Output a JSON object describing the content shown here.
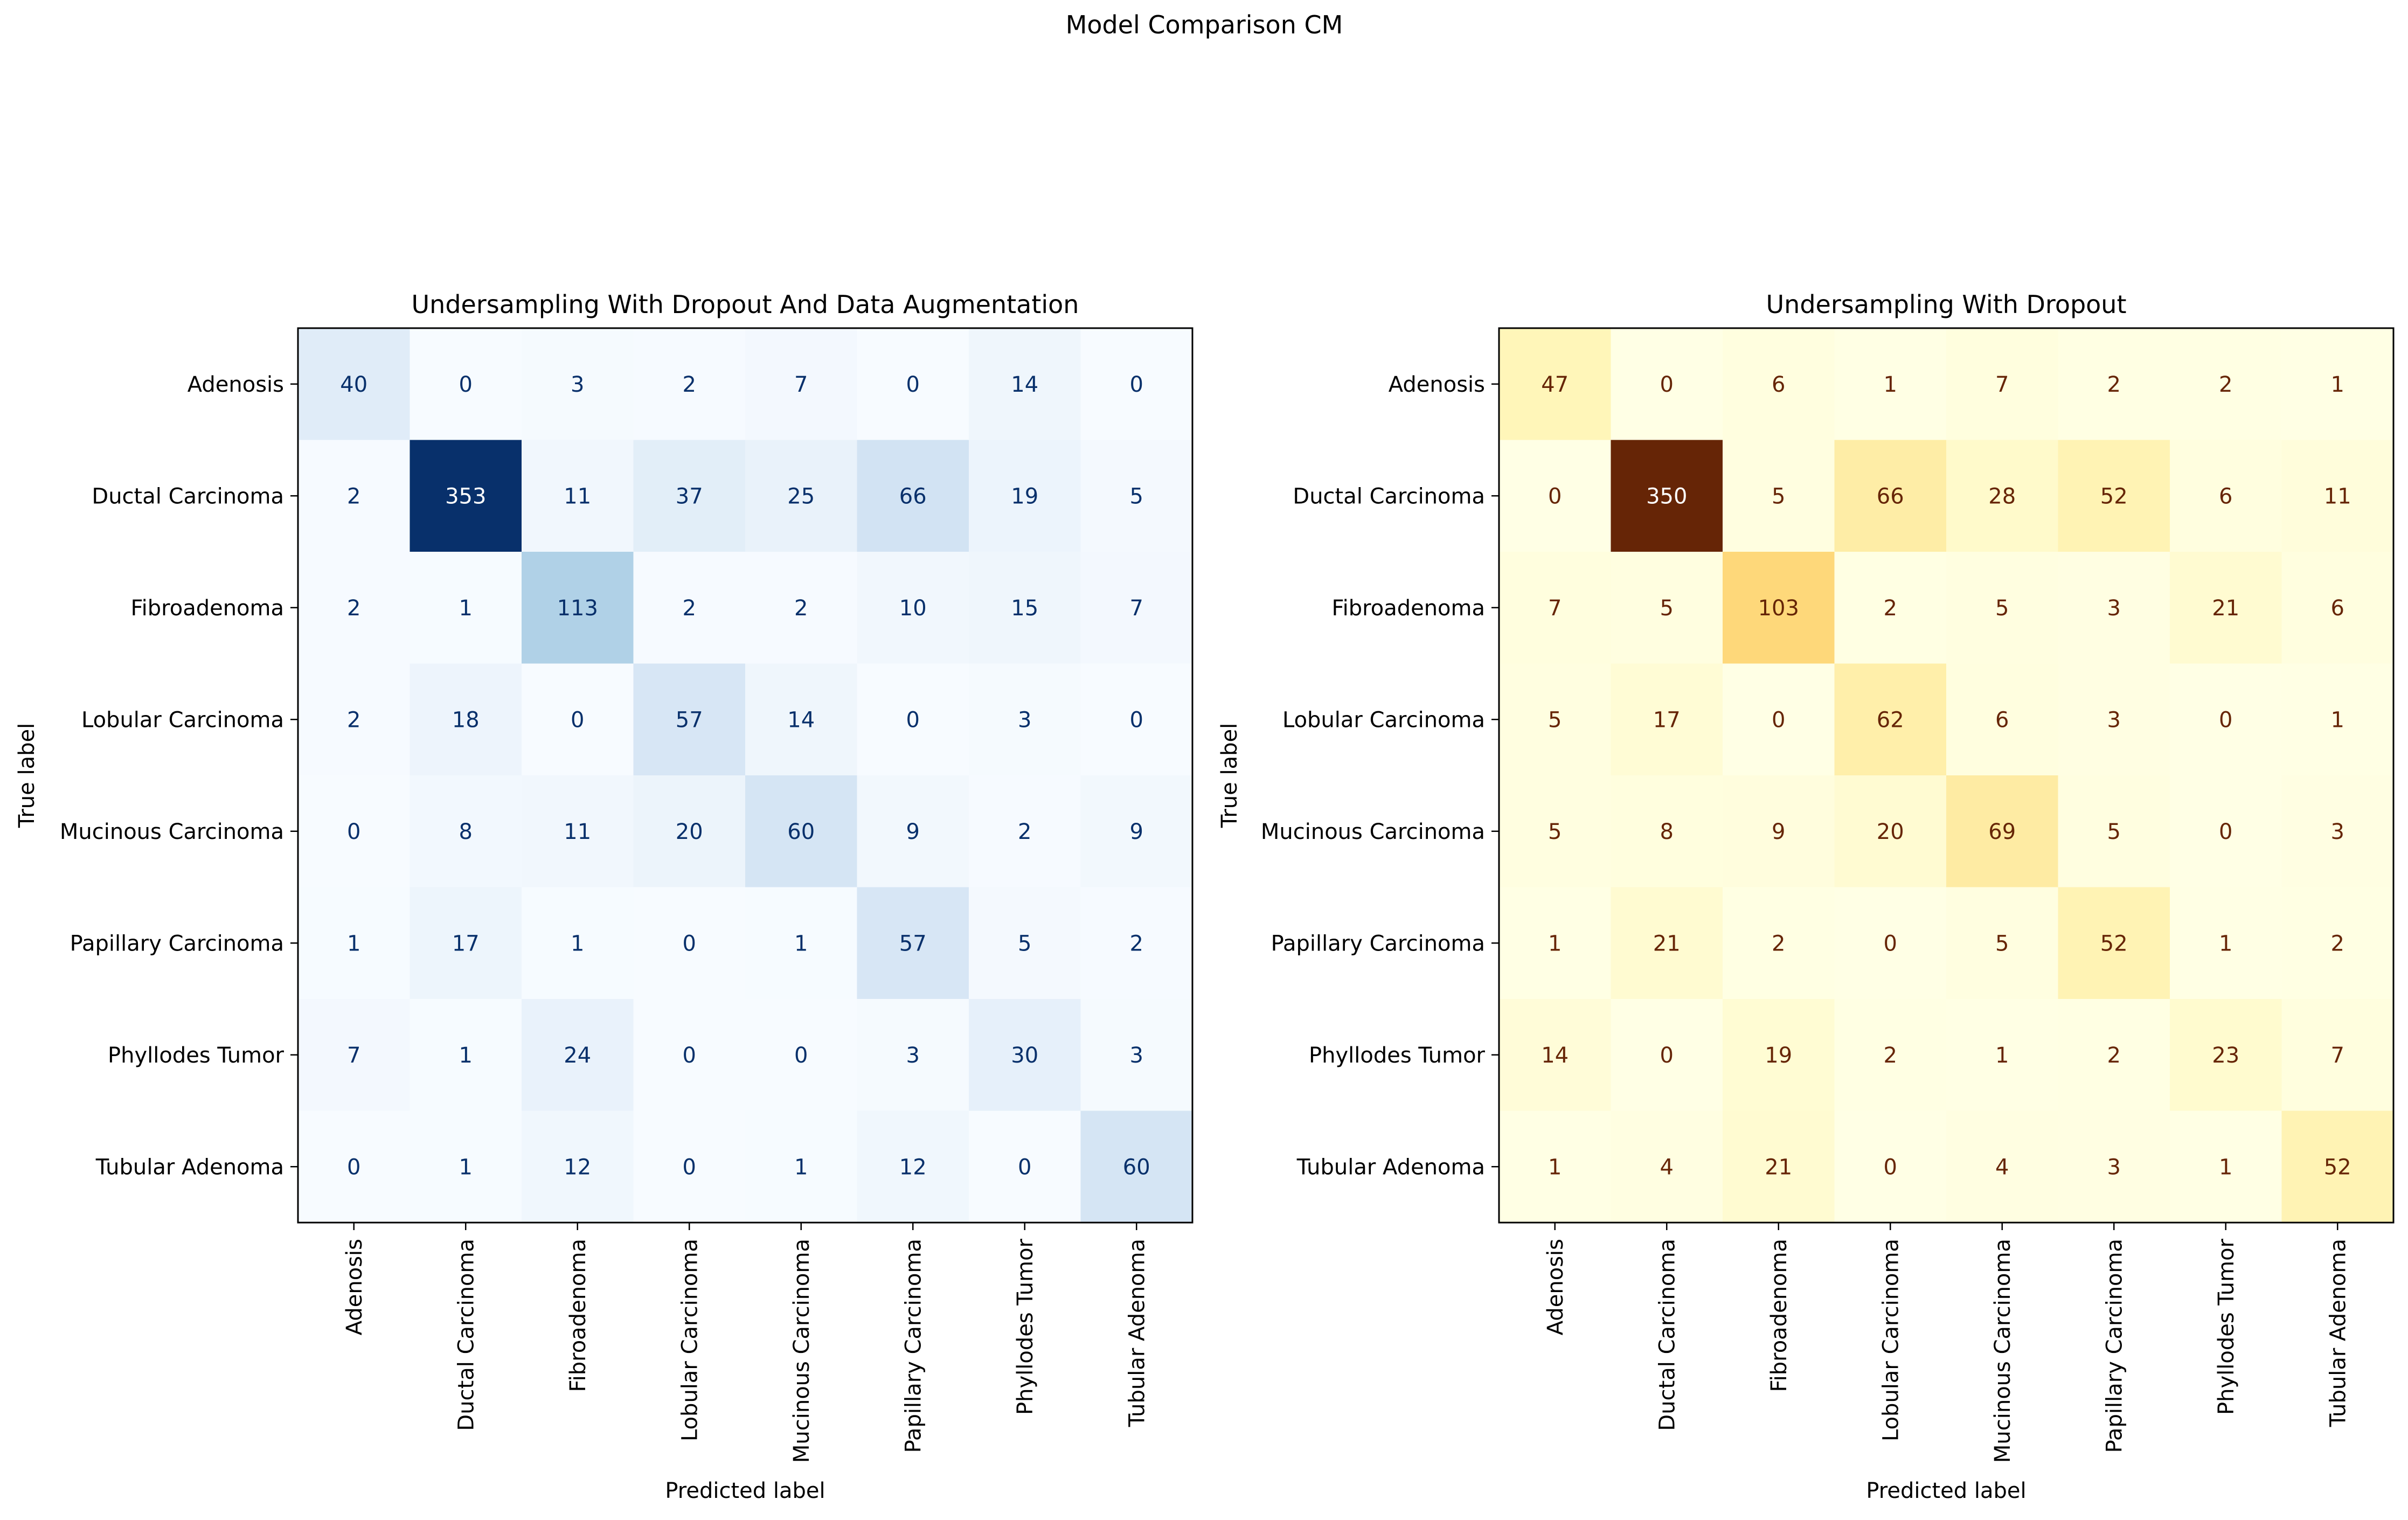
{
  "figure": {
    "suptitle": "Model Comparison CM"
  },
  "chart_data": [
    {
      "type": "heatmap",
      "title": "Undersampling With Dropout And Data Augmentation",
      "xlabel": "Predicted label",
      "ylabel": "True label",
      "colormap": "Blues",
      "color_low": "#f7fbff",
      "color_high": "#08306b",
      "value_range": [
        0,
        353
      ],
      "categories": [
        "Adenosis",
        "Ductal Carcinoma",
        "Fibroadenoma",
        "Lobular Carcinoma",
        "Mucinous Carcinoma",
        "Papillary Carcinoma",
        "Phyllodes Tumor",
        "Tubular Adenoma"
      ],
      "matrix": [
        [
          40,
          0,
          3,
          2,
          7,
          0,
          14,
          0
        ],
        [
          2,
          353,
          11,
          37,
          25,
          66,
          19,
          5
        ],
        [
          2,
          1,
          113,
          2,
          2,
          10,
          15,
          7
        ],
        [
          2,
          18,
          0,
          57,
          14,
          0,
          3,
          0
        ],
        [
          0,
          8,
          11,
          20,
          60,
          9,
          2,
          9
        ],
        [
          1,
          17,
          1,
          0,
          1,
          57,
          5,
          2
        ],
        [
          7,
          1,
          24,
          0,
          0,
          3,
          30,
          3
        ],
        [
          0,
          1,
          12,
          0,
          1,
          12,
          0,
          60
        ]
      ]
    },
    {
      "type": "heatmap",
      "title": "Undersampling With Dropout",
      "xlabel": "Predicted label",
      "ylabel": "True label",
      "colormap": "YlOrBr",
      "color_low": "#ffffe5",
      "color_high": "#662506",
      "value_range": [
        0,
        350
      ],
      "categories": [
        "Adenosis",
        "Ductal Carcinoma",
        "Fibroadenoma",
        "Lobular Carcinoma",
        "Mucinous Carcinoma",
        "Papillary Carcinoma",
        "Phyllodes Tumor",
        "Tubular Adenoma"
      ],
      "matrix": [
        [
          47,
          0,
          6,
          1,
          7,
          2,
          2,
          1
        ],
        [
          0,
          350,
          5,
          66,
          28,
          52,
          6,
          11
        ],
        [
          7,
          5,
          103,
          2,
          5,
          3,
          21,
          6
        ],
        [
          5,
          17,
          0,
          62,
          6,
          3,
          0,
          1
        ],
        [
          5,
          8,
          9,
          20,
          69,
          5,
          0,
          3
        ],
        [
          1,
          21,
          2,
          0,
          5,
          52,
          1,
          2
        ],
        [
          14,
          0,
          19,
          2,
          1,
          2,
          23,
          7
        ],
        [
          1,
          4,
          21,
          0,
          4,
          3,
          1,
          52
        ]
      ]
    }
  ]
}
